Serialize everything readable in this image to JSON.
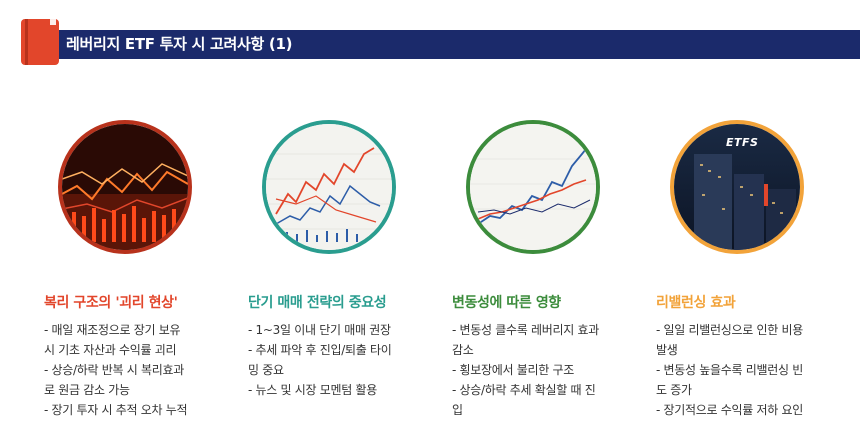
{
  "header": {
    "title": "레버리지 ETF 투자 시 고려사항 (1)",
    "colors": {
      "bar": "#1b2a6b",
      "icon": "#e2462b"
    }
  },
  "columns": [
    {
      "title": "복리 구조의 '괴리 현상'",
      "color": "#e2462b",
      "image": "red-candlestick-chart-image",
      "lines": [
        "- 매일 재조정으로 장기 보유",
        "시 기초 자산과 수익률 괴리",
        "- 상승/하락 반복 시 복리효과",
        "로 원금 감소 가능",
        "- 장기 투자 시 추적 오차 누적"
      ]
    },
    {
      "title": "단기 매매 전략의 중요성",
      "color": "#2a9d8f",
      "image": "line-chart-image",
      "lines": [
        "- 1~3일 이내 단기 매매 권장",
        "- 추세 파악 후 진입/퇴출 타이",
        "밍 중요",
        "- 뉴스 및 시장 모멘텀 활용"
      ]
    },
    {
      "title": "변동성에 따른 영향",
      "color": "#3c8c3c",
      "image": "volatility-chart-image",
      "lines": [
        "- 변동성 클수록 레버리지 효과",
        "감소",
        "- 횡보장에서 불리한 구조",
        "- 상승/하락 추세 확실할 때 진",
        "입"
      ]
    },
    {
      "title": "리밸런싱 효과",
      "color": "#f2a33a",
      "image": "etfs-building-image",
      "lines": [
        "- 일일 리밸런싱으로 인한 비용",
        "발생",
        "- 변동성 높을수록 리밸런싱 빈",
        "도 증가",
        "- 장기적으로 수익률 저하 요인"
      ]
    }
  ],
  "etfs_logo": "ETFS"
}
